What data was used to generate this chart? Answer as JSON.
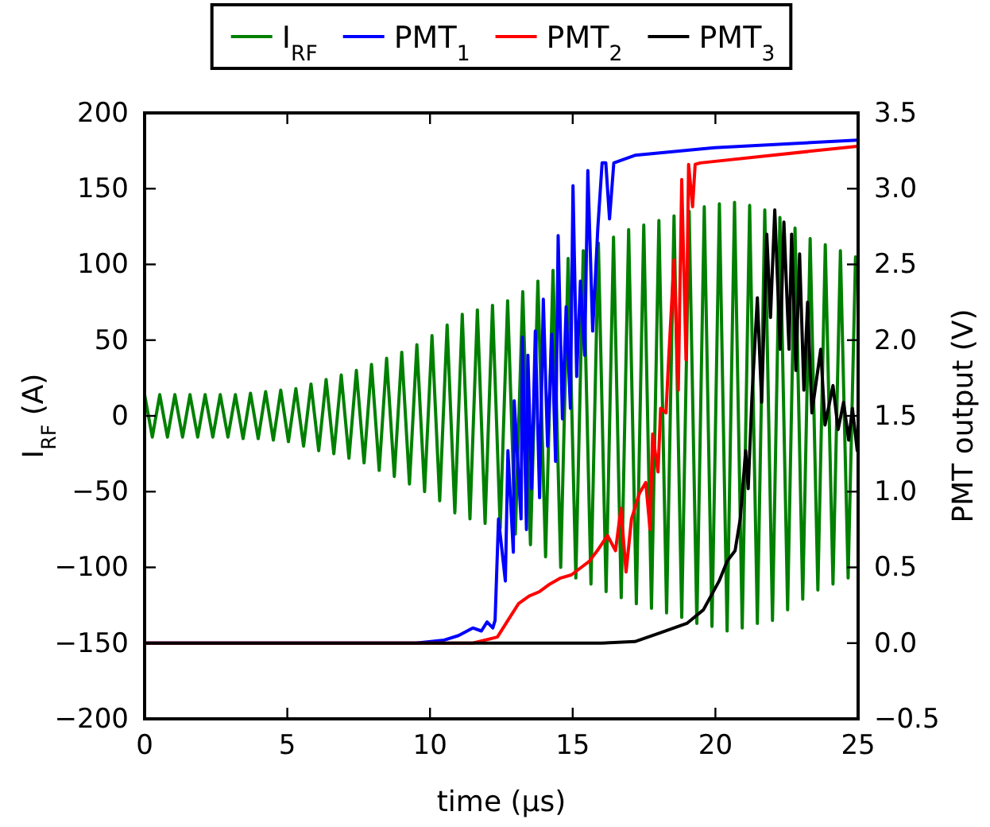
{
  "chart_data": {
    "type": "line",
    "xlabel": "time (μs)",
    "ylabel": "I$_{RF}$ (A)",
    "y2label": "PMT output (V)",
    "legend": "top",
    "grid": false,
    "xlim": [
      0,
      25
    ],
    "xticks": [
      0,
      5,
      10,
      15,
      20,
      25
    ],
    "ylim": [
      -200,
      200
    ],
    "yticks": [
      {
        "value": -200,
        "label": "−200"
      },
      {
        "value": -150,
        "label": "−150"
      },
      {
        "value": -100,
        "label": "−100"
      },
      {
        "value": -50,
        "label": "−50"
      },
      0,
      50,
      100,
      150,
      200
    ],
    "y2lim": [
      -0.5,
      3.5
    ],
    "y2ticks": [
      {
        "value": -0.5,
        "label": "−0.5"
      },
      {
        "value": 0,
        "label": "0.0"
      },
      0.5,
      {
        "value": 1,
        "label": "1.0"
      },
      1.5,
      {
        "value": 2,
        "label": "2.0"
      },
      2.5,
      {
        "value": 3,
        "label": "3.0"
      },
      3.5
    ],
    "series": [
      {
        "name": "I$_{RF}$",
        "color": "#008000",
        "x": [
          0,
          0.27,
          0.53,
          0.8,
          1.06,
          1.33,
          1.59,
          1.86,
          2.12,
          2.39,
          2.65,
          2.92,
          3.18,
          3.45,
          3.71,
          3.98,
          4.24,
          4.51,
          4.77,
          5.04,
          5.3,
          5.57,
          5.83,
          6.1,
          6.36,
          6.63,
          6.89,
          7.16,
          7.42,
          7.69,
          7.95,
          8.22,
          8.48,
          8.75,
          9.01,
          9.28,
          9.54,
          9.81,
          10.07,
          10.34,
          10.6,
          10.87,
          11.13,
          11.4,
          11.66,
          11.93,
          12.19,
          12.46,
          12.72,
          12.99,
          13.25,
          13.52,
          13.78,
          14.05,
          14.31,
          14.58,
          14.84,
          15.11,
          15.37,
          15.64,
          15.9,
          16.17,
          16.43,
          16.7,
          16.96,
          17.23,
          17.49,
          17.76,
          18.02,
          18.29,
          18.55,
          18.82,
          19.08,
          19.35,
          19.61,
          19.88,
          20.14,
          20.41,
          20.67,
          20.94,
          21.2,
          21.47,
          21.73,
          22,
          22.26,
          22.53,
          22.79,
          23.06,
          23.32,
          23.59,
          23.85,
          24.12,
          24.38,
          24.65,
          24.91
        ],
        "values": [
          14,
          -14,
          14,
          -14,
          14,
          -14,
          14,
          -14,
          14,
          -14,
          14,
          -14,
          14,
          -15,
          15,
          -15,
          16,
          -16,
          17,
          -17,
          18,
          -20,
          21,
          -23,
          24,
          -25,
          27,
          -28,
          30,
          -31,
          34,
          -36,
          38,
          -40,
          42,
          -45,
          47,
          -50,
          53,
          -56,
          60,
          -64,
          67,
          -68,
          70,
          -71,
          73,
          -74,
          76,
          -78,
          82,
          -85,
          89,
          -93,
          96,
          -100,
          104,
          -107,
          109,
          -111,
          114,
          -116,
          118,
          -120,
          123,
          -124,
          126,
          -127,
          129,
          -130,
          132,
          -133,
          135,
          -137,
          138,
          -139,
          140,
          -142,
          141,
          -140,
          139,
          -137,
          136,
          -135,
          131,
          -128,
          124,
          -121,
          117,
          -115,
          113,
          -111,
          109,
          -107,
          105
        ]
      },
      {
        "name": "PMT$_{1}$",
        "color": "#0000ff",
        "axis": "y2",
        "x": [
          0,
          9.5,
          10.5,
          11,
          11.5,
          11.8,
          12,
          12.2,
          12.28,
          12.4,
          12.64,
          12.73,
          12.92,
          12.95,
          13.19,
          13.24,
          13.38,
          13.43,
          13.56,
          13.69,
          13.84,
          13.97,
          14.12,
          14.27,
          14.4,
          14.49,
          14.64,
          14.77,
          14.92,
          15.01,
          15.14,
          15.27,
          15.42,
          15.53,
          15.7,
          15.88,
          16.03,
          16.16,
          16.29,
          16.44,
          17.18,
          19.96,
          24.97
        ],
        "values": [
          0,
          0,
          0.02,
          0.05,
          0.1,
          0.08,
          0.14,
          0.1,
          0.15,
          0.82,
          0.41,
          1.27,
          0.6,
          1.6,
          0.82,
          2.02,
          0.75,
          1.9,
          1.02,
          2.06,
          0.96,
          2.27,
          1.3,
          2.04,
          1.2,
          2.69,
          1.48,
          2.22,
          1.55,
          3.02,
          1.76,
          2.39,
          1.9,
          3.12,
          2.06,
          2.74,
          3.17,
          3.17,
          2.8,
          3.17,
          3.22,
          3.27,
          3.32
        ]
      },
      {
        "name": "PMT$_{2}$",
        "color": "#ff0000",
        "axis": "y2",
        "x": [
          0,
          11.5,
          12.36,
          12.73,
          13.1,
          13.47,
          13.84,
          14.2,
          14.58,
          14.95,
          15.3,
          15.58,
          15.86,
          16.22,
          16.5,
          16.69,
          16.87,
          17.06,
          17.34,
          17.56,
          17.71,
          17.8,
          17.99,
          18.08,
          18.27,
          18.36,
          18.55,
          18.7,
          18.82,
          18.97,
          19.06,
          19.2,
          19.29,
          19.47,
          24.97
        ],
        "values": [
          0,
          0,
          0.04,
          0.15,
          0.26,
          0.31,
          0.34,
          0.39,
          0.43,
          0.45,
          0.5,
          0.54,
          0.61,
          0.71,
          0.61,
          0.89,
          0.47,
          0.82,
          0.99,
          1.06,
          0.75,
          1.38,
          1.13,
          1.55,
          1.52,
          1.87,
          2.53,
          1.67,
          3.06,
          1.87,
          3.16,
          2.88,
          3.16,
          3.17,
          3.28
        ]
      },
      {
        "name": "PMT$_{3}$",
        "color": "#000000",
        "axis": "y2",
        "x": [
          0,
          16,
          17.18,
          18.1,
          19,
          19.58,
          20.13,
          20.41,
          20.69,
          20.87,
          21.06,
          21.15,
          21.28,
          21.47,
          21.62,
          21.8,
          21.93,
          22.08,
          22.27,
          22.4,
          22.58,
          22.67,
          22.82,
          22.95,
          23.1,
          23.23,
          23.38,
          23.69,
          23.84,
          24.12,
          24.3,
          24.49,
          24.67,
          24.8,
          24.97
        ],
        "values": [
          0,
          0,
          0.01,
          0.07,
          0.13,
          0.22,
          0.41,
          0.54,
          0.61,
          0.82,
          1.27,
          1.02,
          1.62,
          2.28,
          1.59,
          2.7,
          2.15,
          2.86,
          1.94,
          2.78,
          1.94,
          2.7,
          1.8,
          2.57,
          1.67,
          2.25,
          1.52,
          1.94,
          1.44,
          1.7,
          1.41,
          1.59,
          1.34,
          1.55,
          1.27
        ]
      }
    ]
  }
}
